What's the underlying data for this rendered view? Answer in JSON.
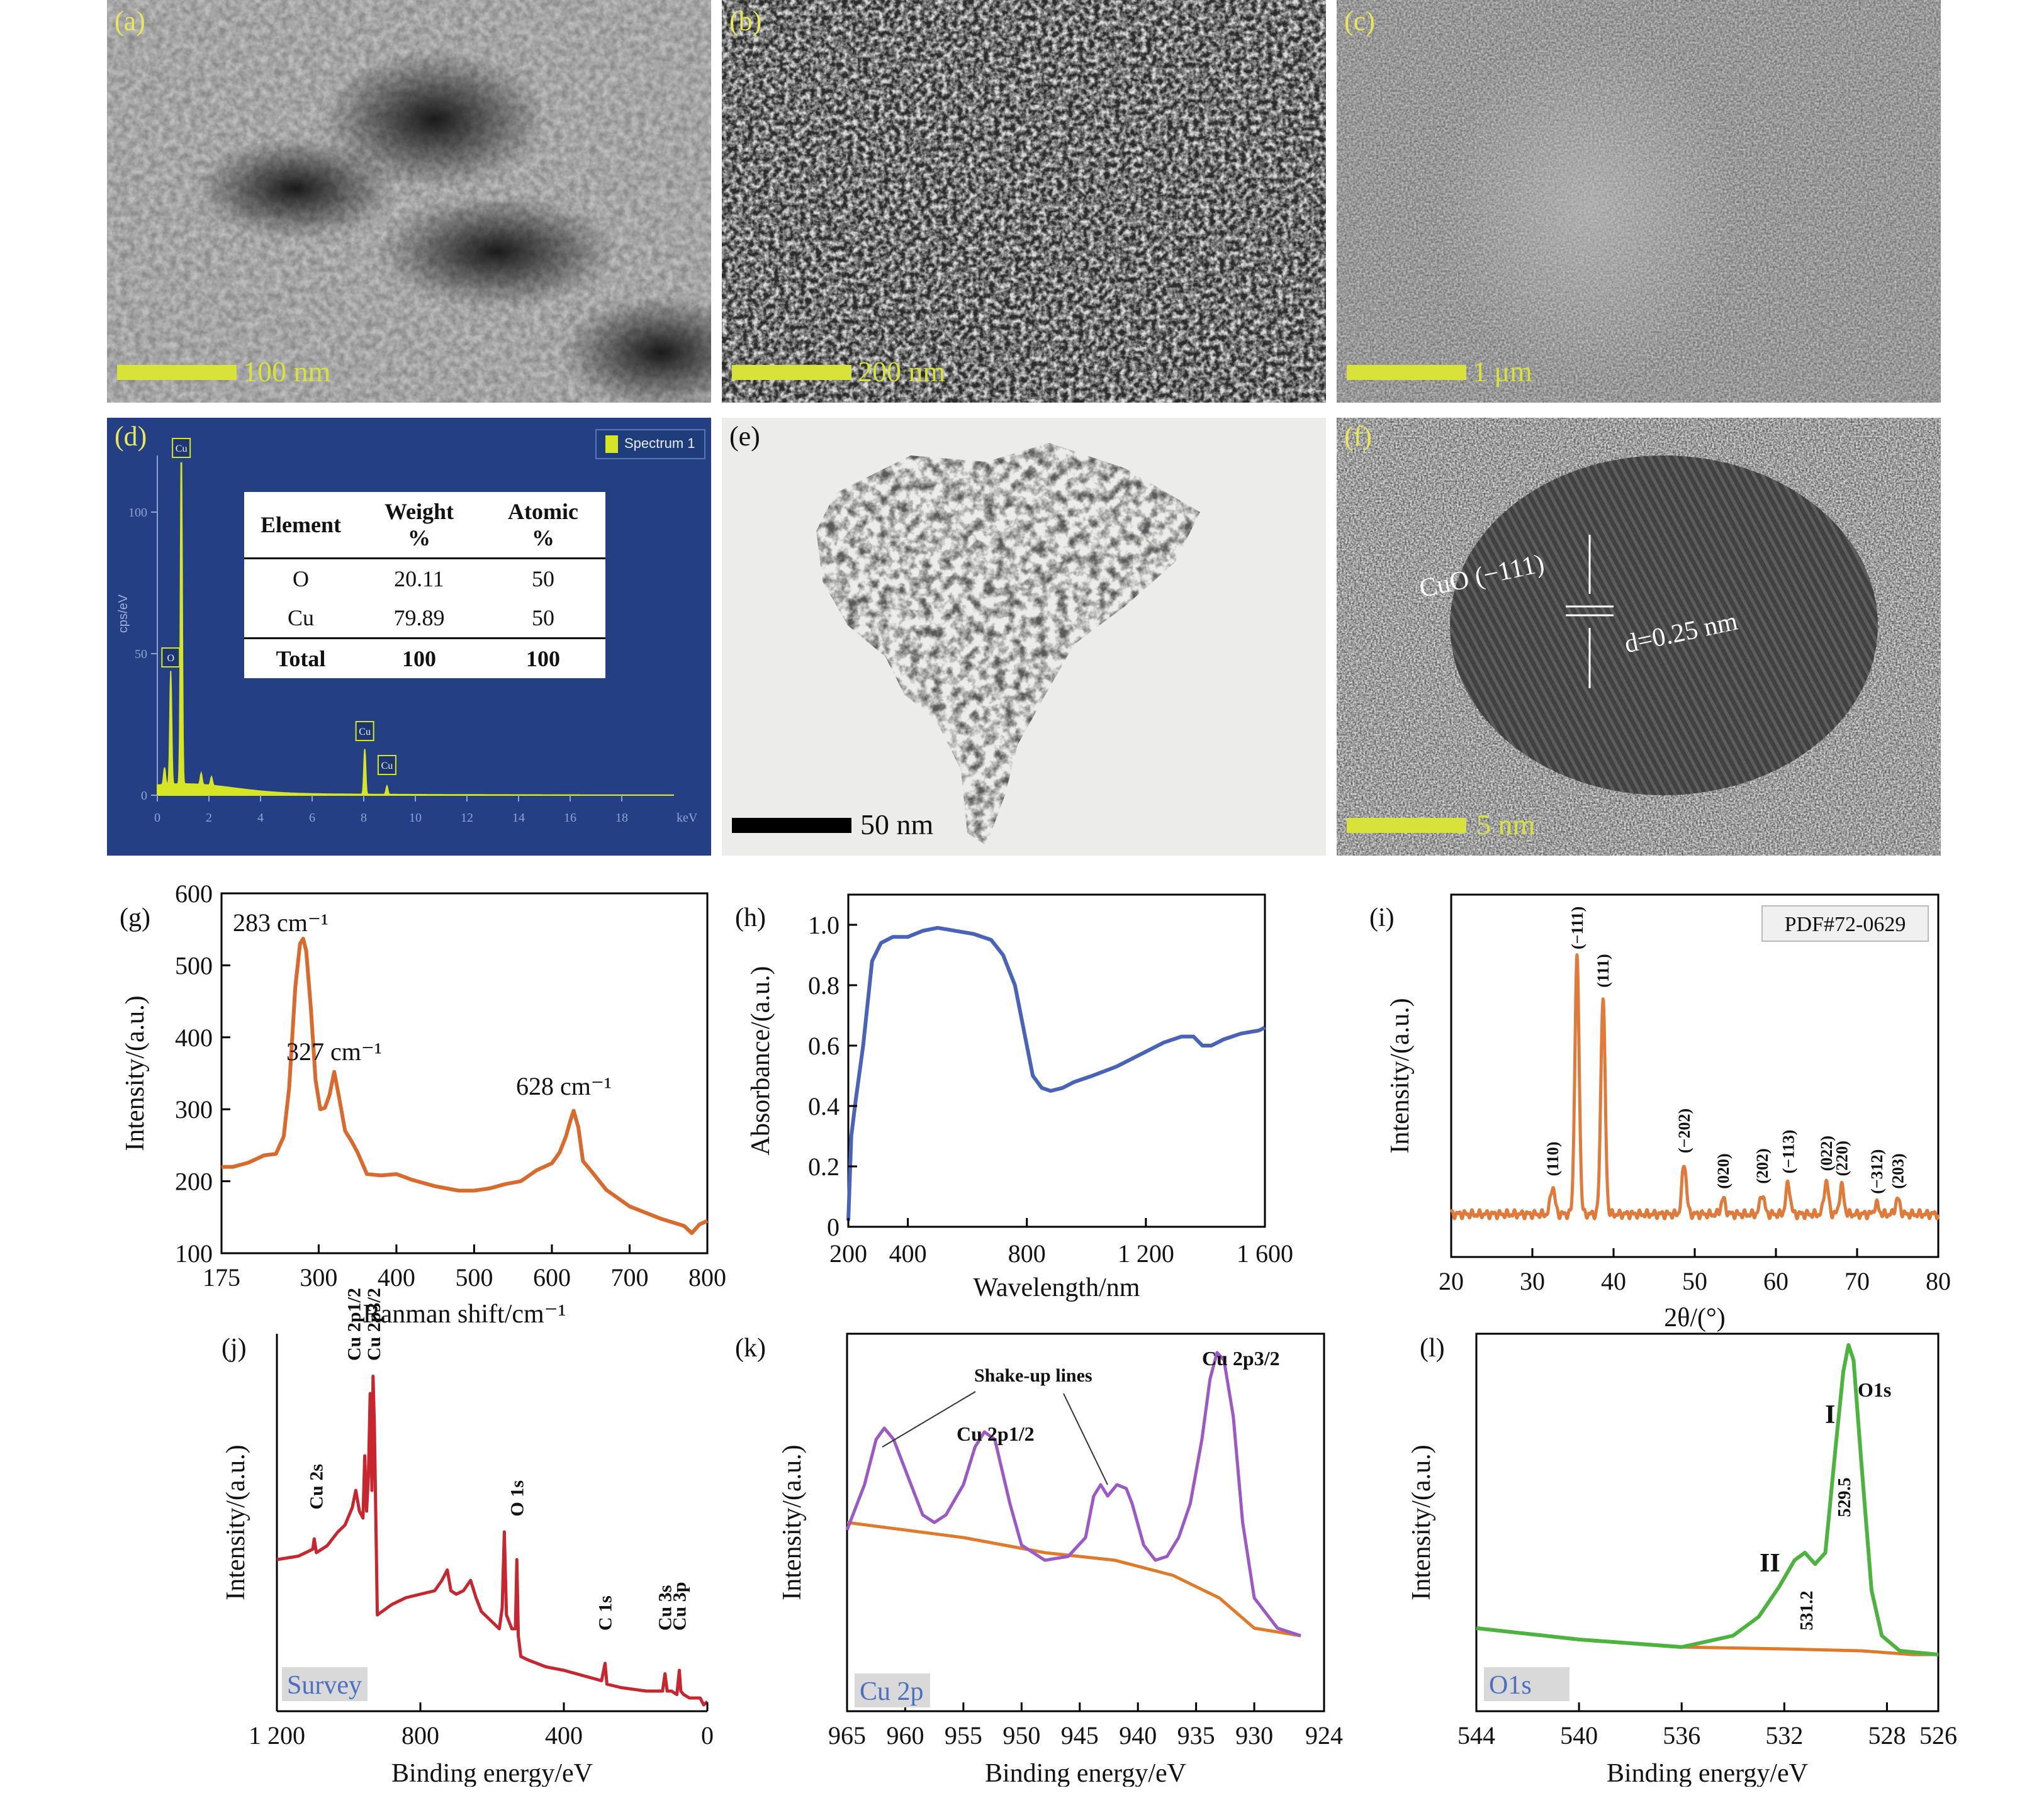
{
  "panels": {
    "a": {
      "label": "(a)",
      "scalebar": "100 nm"
    },
    "b": {
      "label": "(b)",
      "scalebar": "200 nm"
    },
    "c": {
      "label": "(c)",
      "scalebar": "1 μm"
    },
    "d": {
      "label": "(d)",
      "legend": "Spectrum 1",
      "y_axis_label": "cps/eV",
      "x_unit": "keV",
      "y_ticks": [
        "0",
        "50",
        "100"
      ],
      "x_ticks": [
        "0",
        "2",
        "4",
        "6",
        "8",
        "10",
        "12",
        "14",
        "16",
        "18"
      ],
      "peak_tags": [
        "Cu",
        "O",
        "Cu",
        "Cu"
      ],
      "table": {
        "headers": [
          "Element",
          "Weight %",
          "Atomic %"
        ],
        "rows": [
          [
            "O",
            "20.11",
            "50"
          ],
          [
            "Cu",
            "79.89",
            "50"
          ]
        ],
        "total": [
          "Total",
          "100",
          "100"
        ]
      }
    },
    "e": {
      "label": "(e)",
      "scalebar": "50 nm"
    },
    "f": {
      "label": "(f)",
      "scalebar": "5 nm",
      "plane": "CuO (−111)",
      "d_spacing": "d=0.25 nm"
    }
  },
  "colors": {
    "scalebar": "#d7e33a",
    "edx_bg": "#243f83",
    "raman": "#d96a2c",
    "uvvis": "#4a63b8",
    "xrd": "#e07a3a",
    "xps_survey": "#c8262e",
    "xps_cu": "#9b59c6",
    "xps_o": "#4cb33f",
    "xps_bg": "#e07a2a"
  },
  "chart_data": [
    {
      "panel": "(g)",
      "type": "line",
      "xlabel": "Ranman shift/cm⁻¹",
      "ylabel": "Intensity/(a.u.)",
      "xlim": [
        175,
        800
      ],
      "ylim": [
        100,
        600
      ],
      "xticks": [
        "175",
        "300",
        "400",
        "500",
        "600",
        "700",
        "800"
      ],
      "yticks": [
        "100",
        "200",
        "300",
        "400",
        "500",
        "600"
      ],
      "x": [
        175,
        190,
        210,
        230,
        245,
        255,
        262,
        270,
        276,
        280,
        284,
        290,
        296,
        302,
        308,
        314,
        320,
        326,
        334,
        342,
        350,
        362,
        380,
        400,
        420,
        450,
        480,
        500,
        520,
        540,
        560,
        580,
        600,
        610,
        618,
        624,
        628,
        634,
        640,
        650,
        670,
        700,
        740,
        770,
        780,
        790,
        800
      ],
      "y": [
        220,
        220,
        226,
        236,
        238,
        262,
        330,
        470,
        530,
        537,
        520,
        440,
        340,
        300,
        302,
        320,
        352,
        318,
        270,
        256,
        240,
        210,
        208,
        210,
        202,
        193,
        187,
        187,
        190,
        196,
        200,
        215,
        225,
        240,
        262,
        285,
        298,
        275,
        228,
        215,
        188,
        165,
        148,
        138,
        128,
        140,
        145
      ],
      "annotations": [
        "283 cm⁻¹",
        "327 cm⁻¹",
        "628 cm⁻¹"
      ]
    },
    {
      "panel": "(h)",
      "type": "line",
      "xlabel": "Wavelength/nm",
      "ylabel": "Absorbance/(a.u.)",
      "xlim": [
        200,
        1600
      ],
      "ylim": [
        0,
        1.1
      ],
      "xticks": [
        "200",
        "400",
        "800",
        "1 200",
        "1 600"
      ],
      "yticks": [
        "0",
        "0.2",
        "0.4",
        "0.6",
        "0.8",
        "1.0"
      ],
      "x": [
        200,
        210,
        225,
        250,
        280,
        310,
        350,
        400,
        450,
        500,
        560,
        620,
        680,
        720,
        760,
        790,
        820,
        850,
        880,
        920,
        960,
        1020,
        1100,
        1180,
        1260,
        1320,
        1360,
        1390,
        1420,
        1460,
        1520,
        1580,
        1600
      ],
      "y": [
        0.02,
        0.3,
        0.42,
        0.6,
        0.88,
        0.94,
        0.96,
        0.96,
        0.98,
        0.99,
        0.98,
        0.97,
        0.95,
        0.9,
        0.8,
        0.65,
        0.5,
        0.46,
        0.45,
        0.46,
        0.48,
        0.5,
        0.53,
        0.57,
        0.61,
        0.63,
        0.63,
        0.6,
        0.6,
        0.62,
        0.64,
        0.65,
        0.66
      ]
    },
    {
      "panel": "(i)",
      "type": "line",
      "xlabel": "2θ/(°)",
      "ylabel": "Intensity/(a.u.)",
      "xlim": [
        20,
        80
      ],
      "xticks": [
        "20",
        "30",
        "40",
        "50",
        "60",
        "70",
        "80"
      ],
      "legend_box": "PDF#72-0629",
      "peaks": [
        {
          "hkl": "(110)",
          "two_theta": 32.5,
          "rel": 0.11
        },
        {
          "hkl": "(−111)",
          "two_theta": 35.5,
          "rel": 1.0
        },
        {
          "hkl": "(111)",
          "two_theta": 38.7,
          "rel": 0.85
        },
        {
          "hkl": "(−202)",
          "two_theta": 48.7,
          "rel": 0.2
        },
        {
          "hkl": "(020)",
          "two_theta": 53.5,
          "rel": 0.06
        },
        {
          "hkl": "(202)",
          "two_theta": 58.3,
          "rel": 0.08
        },
        {
          "hkl": "(−113)",
          "two_theta": 61.5,
          "rel": 0.12
        },
        {
          "hkl": "(022)",
          "two_theta": 66.2,
          "rel": 0.13
        },
        {
          "hkl": "(220)",
          "two_theta": 68.1,
          "rel": 0.11
        },
        {
          "hkl": "(−312)",
          "two_theta": 72.4,
          "rel": 0.04
        },
        {
          "hkl": "(203)",
          "two_theta": 75.0,
          "rel": 0.06
        }
      ]
    },
    {
      "panel": "(j)",
      "type": "line",
      "xlabel": "Binding energy/eV",
      "ylabel": "Intensity/(a.u.)",
      "xlim": [
        1200,
        0
      ],
      "ylim": [
        0,
        1
      ],
      "xticks": [
        "1 200",
        "800",
        "400",
        "0"
      ],
      "tag": "Survey",
      "x": [
        1200,
        1140,
        1100,
        1096,
        1090,
        1060,
        1030,
        1010,
        990,
        980,
        970,
        960,
        955,
        950,
        945,
        940,
        935,
        932,
        928,
        920,
        880,
        840,
        800,
        760,
        740,
        725,
        715,
        700,
        680,
        660,
        645,
        630,
        600,
        580,
        572,
        566,
        560,
        545,
        535,
        531,
        527,
        520,
        500,
        450,
        400,
        330,
        295,
        285,
        280,
        240,
        170,
        125,
        118,
        112,
        100,
        85,
        78,
        74,
        66,
        50,
        20,
        10,
        0
      ],
      "y": [
        0.42,
        0.43,
        0.45,
        0.48,
        0.44,
        0.46,
        0.5,
        0.52,
        0.57,
        0.62,
        0.56,
        0.54,
        0.72,
        0.56,
        0.66,
        0.9,
        0.62,
        0.95,
        0.8,
        0.26,
        0.29,
        0.31,
        0.32,
        0.33,
        0.36,
        0.39,
        0.33,
        0.32,
        0.33,
        0.36,
        0.31,
        0.27,
        0.24,
        0.22,
        0.28,
        0.5,
        0.26,
        0.22,
        0.22,
        0.42,
        0.2,
        0.14,
        0.13,
        0.11,
        0.1,
        0.08,
        0.07,
        0.12,
        0.06,
        0.05,
        0.04,
        0.04,
        0.09,
        0.04,
        0.04,
        0.03,
        0.1,
        0.04,
        0.03,
        0.02,
        0.02,
        0.0,
        0.01
      ],
      "peak_labels": [
        "Cu 2s",
        "Cu 2p1/2",
        "Cu 2p3/2",
        "O 1s",
        "C 1s",
        "Cu 3s",
        "Cu 3p"
      ]
    },
    {
      "panel": "(k)",
      "type": "line",
      "xlabel": "Binding energy/eV",
      "ylabel": "Intensity/(a.u.)",
      "xlim": [
        965,
        924
      ],
      "xticks": [
        "965",
        "960",
        "955",
        "950",
        "945",
        "940",
        "935",
        "930",
        "924"
      ],
      "tag": "Cu 2p",
      "series": [
        {
          "x": [
            965,
            963.5,
            962.5,
            961.8,
            961,
            959.5,
            958.5,
            957.5,
            956.5,
            955,
            954,
            953.2,
            952.3,
            951,
            950,
            948,
            946,
            944.5,
            943.8,
            943.2,
            942.6,
            941.8,
            941,
            940.5,
            939.5,
            938.5,
            937.5,
            936.5,
            935.5,
            934.5,
            933.8,
            933.2,
            932.6,
            931.8,
            931,
            930,
            928,
            926
          ],
          "y": [
            0.48,
            0.6,
            0.72,
            0.75,
            0.72,
            0.6,
            0.52,
            0.5,
            0.52,
            0.6,
            0.7,
            0.74,
            0.72,
            0.55,
            0.44,
            0.4,
            0.41,
            0.46,
            0.57,
            0.6,
            0.57,
            0.6,
            0.59,
            0.55,
            0.44,
            0.4,
            0.41,
            0.46,
            0.55,
            0.72,
            0.88,
            0.95,
            0.93,
            0.78,
            0.5,
            0.3,
            0.22,
            0.2
          ]
        },
        {
          "x": [
            965,
            955,
            948,
            942,
            937,
            933,
            930,
            926
          ],
          "y": [
            0.5,
            0.46,
            0.42,
            0.4,
            0.36,
            0.3,
            0.22,
            0.2
          ]
        }
      ],
      "annotations": [
        "Shake-up lines",
        "Cu 2p1/2",
        "Cu 2p3/2"
      ]
    },
    {
      "panel": "(l)",
      "type": "line",
      "xlabel": "Binding energy/eV",
      "ylabel": "Intensity/(a.u.)",
      "xlim": [
        544,
        526
      ],
      "xticks": [
        "544",
        "540",
        "536",
        "532",
        "528",
        "526"
      ],
      "tag": "O1s",
      "series": [
        {
          "x": [
            544,
            540,
            536,
            534,
            533,
            532.2,
            531.6,
            531.2,
            530.8,
            530.4,
            530.0,
            529.7,
            529.5,
            529.3,
            529.0,
            528.6,
            528.2,
            527.5,
            526
          ],
          "y": [
            0.22,
            0.19,
            0.17,
            0.2,
            0.25,
            0.33,
            0.4,
            0.42,
            0.39,
            0.42,
            0.7,
            0.9,
            0.97,
            0.93,
            0.66,
            0.32,
            0.2,
            0.16,
            0.15
          ]
        },
        {
          "x": [
            544,
            540,
            536,
            532,
            529,
            527,
            526
          ],
          "y": [
            0.22,
            0.19,
            0.17,
            0.165,
            0.16,
            0.15,
            0.15
          ]
        }
      ],
      "annotations": [
        "O1s",
        "I",
        "529.5",
        "II",
        "531.2"
      ]
    }
  ]
}
